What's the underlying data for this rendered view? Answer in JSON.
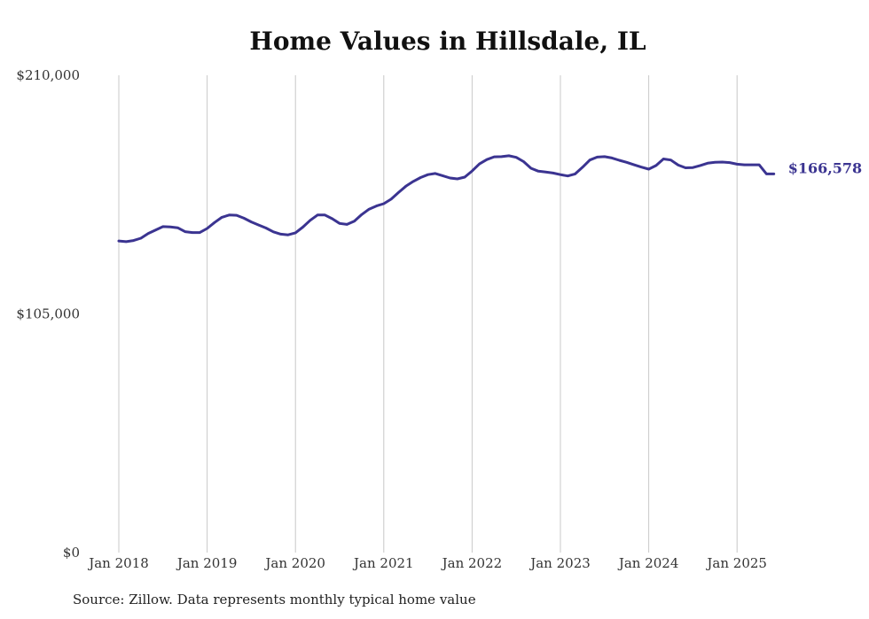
{
  "source_note": "Source: Zillow. Data represents monthly typical home value",
  "chart_data": {
    "type": "line",
    "title": "Home Values in Hillsdale, IL",
    "xlabel": "",
    "ylabel": "",
    "ylim": [
      0,
      210000
    ],
    "yticks": [
      0,
      105000,
      210000
    ],
    "ytick_labels": [
      "$0",
      "$105,000",
      "$210,000"
    ],
    "xlim": [
      "2018-01",
      "2025-12"
    ],
    "xticks": [
      "2018-01",
      "2019-01",
      "2020-01",
      "2021-01",
      "2022-01",
      "2023-01",
      "2024-01",
      "2025-01"
    ],
    "xtick_labels": [
      "Jan 2018",
      "Jan 2019",
      "Jan 2020",
      "Jan 2021",
      "Jan 2022",
      "Jan 2023",
      "Jan 2024",
      "Jan 2025"
    ],
    "grid": "vertical",
    "line_color": "#3b3491",
    "end_label": "$166,578",
    "series": [
      {
        "x": [
          "2018-01",
          "2018-02",
          "2018-03",
          "2018-04",
          "2018-05",
          "2018-06",
          "2018-07",
          "2018-08",
          "2018-09",
          "2018-10",
          "2018-11",
          "2018-12",
          "2019-01",
          "2019-02",
          "2019-03",
          "2019-04",
          "2019-05",
          "2019-06",
          "2019-07",
          "2019-08",
          "2019-09",
          "2019-10",
          "2019-11",
          "2019-12",
          "2020-01",
          "2020-02",
          "2020-03",
          "2020-04",
          "2020-05",
          "2020-06",
          "2020-07",
          "2020-08",
          "2020-09",
          "2020-10",
          "2020-11",
          "2020-12",
          "2021-01",
          "2021-02",
          "2021-03",
          "2021-04",
          "2021-05",
          "2021-06",
          "2021-07",
          "2021-08",
          "2021-09",
          "2021-10",
          "2021-11",
          "2021-12",
          "2022-01",
          "2022-02",
          "2022-03",
          "2022-04",
          "2022-05",
          "2022-06",
          "2022-07",
          "2022-08",
          "2022-09",
          "2022-10",
          "2022-11",
          "2022-12",
          "2023-01",
          "2023-02",
          "2023-03",
          "2023-04",
          "2023-05",
          "2023-06",
          "2023-07",
          "2023-08",
          "2023-09",
          "2023-10",
          "2023-11",
          "2023-12",
          "2024-01",
          "2024-02",
          "2024-03",
          "2024-04",
          "2024-05",
          "2024-06",
          "2024-07",
          "2024-08",
          "2024-09",
          "2024-10",
          "2024-11",
          "2024-12",
          "2025-01",
          "2025-02",
          "2025-03",
          "2025-04",
          "2025-05",
          "2025-06"
        ],
        "values": [
          137100,
          136800,
          137300,
          138300,
          140400,
          141900,
          143400,
          143300,
          142900,
          141200,
          140800,
          140800,
          142600,
          145200,
          147500,
          148500,
          148400,
          147100,
          145500,
          144100,
          142800,
          141100,
          140100,
          139800,
          140700,
          143200,
          146200,
          148500,
          148500,
          146900,
          144800,
          144400,
          145800,
          148700,
          151100,
          152500,
          153500,
          155500,
          158400,
          161200,
          163300,
          165000,
          166300,
          166800,
          165800,
          164800,
          164400,
          165200,
          167900,
          171000,
          172900,
          174100,
          174200,
          174600,
          173900,
          172000,
          169100,
          167800,
          167400,
          167000,
          166300,
          165700,
          166600,
          169500,
          172700,
          174000,
          174200,
          173600,
          172600,
          171700,
          170600,
          169600,
          168700,
          170300,
          173200,
          172700,
          170500,
          169300,
          169400,
          170300,
          171300,
          171700,
          171800,
          171600,
          170900,
          170600,
          170600,
          170600,
          166578,
          166578
        ]
      }
    ]
  }
}
